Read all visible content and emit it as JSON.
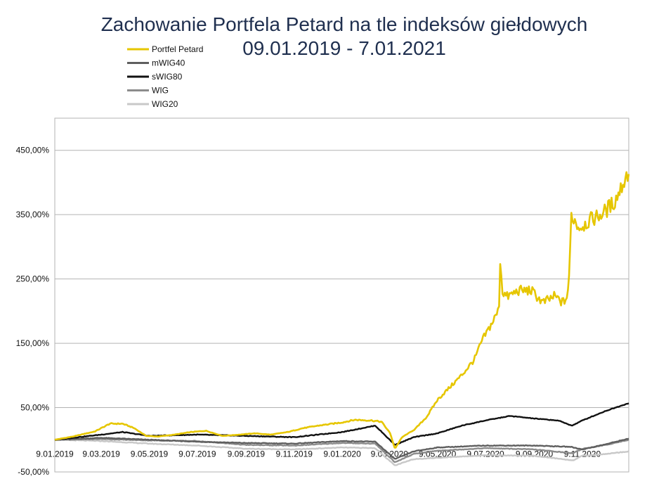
{
  "chart_data": {
    "type": "line",
    "title": "Zachowanie Portfela Petard na tle indeksów giełdowych",
    "subtitle": "09.01.2019 - 7.01.2021",
    "xlabel": "",
    "ylabel": "",
    "x_tick_labels": [
      "9.01.2019",
      "9.03.2019",
      "9.05.2019",
      "9.07.2019",
      "9.09.2019",
      "9.11.2019",
      "9.01.2020",
      "9.03.2020",
      "9.05.2020",
      "9.07.2020",
      "9.09.2020",
      "9.11.2020"
    ],
    "y_tick_labels": [
      "450,00%",
      "350,00%",
      "250,00%",
      "150,00%",
      "50,00%",
      "-50,00%"
    ],
    "ylim": [
      -50,
      500
    ],
    "legend_position": "top-left",
    "grid": "horizontal",
    "series": [
      {
        "name": "Portfel Petard",
        "color": "#e6c600",
        "x": [
          "2019-01-09",
          "2019-02-01",
          "2019-03-01",
          "2019-03-20",
          "2019-04-05",
          "2019-04-20",
          "2019-05-05",
          "2019-05-20",
          "2019-06-10",
          "2019-07-01",
          "2019-07-20",
          "2019-08-10",
          "2019-09-01",
          "2019-09-20",
          "2019-10-10",
          "2019-11-01",
          "2019-11-20",
          "2019-12-10",
          "2020-01-09",
          "2020-01-25",
          "2020-02-15",
          "2020-02-28",
          "2020-03-10",
          "2020-03-16",
          "2020-03-25",
          "2020-04-10",
          "2020-04-25",
          "2020-05-09",
          "2020-05-25",
          "2020-06-10",
          "2020-06-25",
          "2020-07-05",
          "2020-07-18",
          "2020-07-26",
          "2020-07-28",
          "2020-07-30",
          "2020-08-05",
          "2020-08-20",
          "2020-09-05",
          "2020-09-20",
          "2020-10-05",
          "2020-10-15",
          "2020-10-20",
          "2020-10-23",
          "2020-10-26",
          "2020-11-05",
          "2020-11-20",
          "2020-12-05",
          "2020-12-20",
          "2021-01-07"
        ],
        "values": [
          0,
          5,
          13,
          25,
          25,
          18,
          6,
          5,
          8,
          12,
          14,
          6,
          8,
          10,
          8,
          12,
          18,
          22,
          27,
          31,
          30,
          28,
          10,
          -14,
          4,
          16,
          35,
          62,
          82,
          102,
          125,
          155,
          183,
          202,
          290,
          232,
          222,
          232,
          232,
          213,
          223,
          213,
          220,
          242,
          350,
          330,
          342,
          352,
          370,
          418
        ]
      },
      {
        "name": "mWIG40",
        "color": "#5f5f5f",
        "x": [
          "2019-01-09",
          "2019-03-09",
          "2019-05-09",
          "2019-07-09",
          "2019-09-09",
          "2019-11-09",
          "2020-01-09",
          "2020-02-20",
          "2020-03-16",
          "2020-04-09",
          "2020-05-09",
          "2020-07-09",
          "2020-09-09",
          "2020-10-25",
          "2020-11-09",
          "2020-12-09",
          "2021-01-07"
        ],
        "values": [
          0,
          3,
          0,
          -3,
          -5,
          -6,
          -2,
          -3,
          -30,
          -18,
          -12,
          -9,
          -9,
          -11,
          -15,
          -7,
          2
        ]
      },
      {
        "name": "sWIG80",
        "color": "#111111",
        "x": [
          "2019-01-09",
          "2019-03-09",
          "2019-04-05",
          "2019-05-09",
          "2019-07-09",
          "2019-09-09",
          "2019-11-09",
          "2020-01-09",
          "2020-02-20",
          "2020-03-16",
          "2020-04-09",
          "2020-05-09",
          "2020-06-09",
          "2020-07-09",
          "2020-08-09",
          "2020-09-09",
          "2020-10-09",
          "2020-10-27",
          "2020-11-09",
          "2020-12-09",
          "2021-01-07"
        ],
        "values": [
          0,
          8,
          12,
          6,
          8,
          6,
          4,
          12,
          22,
          -8,
          4,
          10,
          22,
          30,
          37,
          33,
          30,
          22,
          30,
          45,
          57
        ]
      },
      {
        "name": "WIG",
        "color": "#8c8c8c",
        "x": [
          "2019-01-09",
          "2019-03-09",
          "2019-05-09",
          "2019-07-09",
          "2019-09-09",
          "2019-11-09",
          "2020-01-09",
          "2020-02-20",
          "2020-03-16",
          "2020-04-09",
          "2020-05-09",
          "2020-07-09",
          "2020-09-09",
          "2020-10-28",
          "2020-11-09",
          "2020-12-09",
          "2021-01-07"
        ],
        "values": [
          0,
          1,
          -1,
          -2,
          -8,
          -9,
          -5,
          -6,
          -35,
          -22,
          -17,
          -13,
          -15,
          -21,
          -14,
          -8,
          0
        ]
      },
      {
        "name": "WIG20",
        "color": "#c8c8c8",
        "x": [
          "2019-01-09",
          "2019-03-09",
          "2019-05-09",
          "2019-07-09",
          "2019-09-09",
          "2019-11-09",
          "2020-01-09",
          "2020-02-20",
          "2020-03-16",
          "2020-04-09",
          "2020-05-09",
          "2020-07-09",
          "2020-09-09",
          "2020-10-28",
          "2020-11-09",
          "2020-12-09",
          "2021-01-07"
        ],
        "values": [
          0,
          -2,
          -6,
          -9,
          -14,
          -15,
          -12,
          -13,
          -40,
          -30,
          -28,
          -24,
          -25,
          -32,
          -25,
          -22,
          -18
        ]
      }
    ]
  }
}
